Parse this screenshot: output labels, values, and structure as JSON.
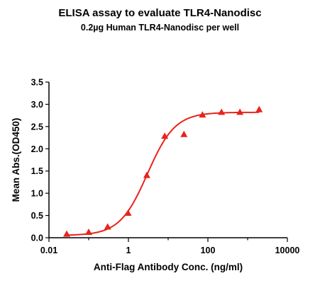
{
  "chart_data": {
    "type": "scatter",
    "title": "ELISA assay to evaluate TLR4-Nanodisc",
    "subtitle": "0.2µg Human TLR4-Nanodisc per well",
    "xlabel": "Anti-Flag Antibody Conc. (ng/ml)",
    "ylabel": "Mean Abs.(OD450)",
    "x_scale": "log",
    "xlim": [
      0.01,
      10000
    ],
    "ylim": [
      0,
      3.5
    ],
    "x_ticks": [
      {
        "value": 0.01,
        "label": "0.01"
      },
      {
        "value": 1,
        "label": "1"
      },
      {
        "value": 100,
        "label": "100"
      },
      {
        "value": 10000,
        "label": "10000"
      }
    ],
    "y_ticks": [
      {
        "value": 0,
        "label": "0.0"
      },
      {
        "value": 0.5,
        "label": "0.5"
      },
      {
        "value": 1,
        "label": "1.0"
      },
      {
        "value": 1.5,
        "label": "1.5"
      },
      {
        "value": 2,
        "label": "2.0"
      },
      {
        "value": 2.5,
        "label": "2.5"
      },
      {
        "value": 3,
        "label": "3.0"
      },
      {
        "value": 3.5,
        "label": "3.5"
      }
    ],
    "grid": false,
    "legend": "none",
    "marker": "triangle",
    "color": "#e8231b",
    "series": [
      {
        "x": [
          0.028,
          0.1,
          0.3,
          0.98,
          2.9,
          8.2,
          25,
          73,
          220,
          640,
          1950
        ],
        "y": [
          0.08,
          0.12,
          0.24,
          0.55,
          1.4,
          2.28,
          2.32,
          2.76,
          2.82,
          2.82,
          2.88
        ]
      }
    ],
    "fit_curve": {
      "model": "4PL",
      "bottom": 0.05,
      "top": 2.82,
      "ec50": 3.0,
      "hill": 1.25
    }
  }
}
